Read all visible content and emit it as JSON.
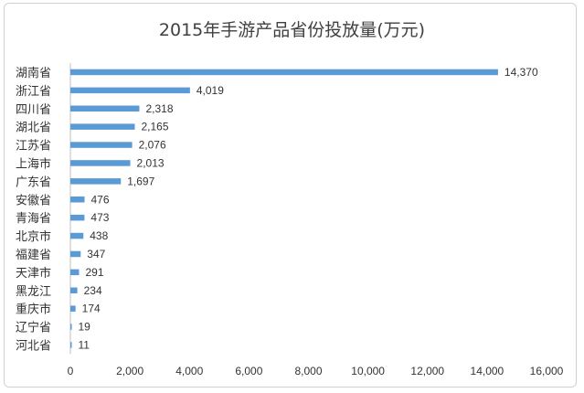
{
  "chart_data": {
    "type": "bar",
    "orientation": "horizontal",
    "title": "2015年手游产品省份投放量(万元)",
    "categories": [
      "湖南省",
      "浙江省",
      "四川省",
      "湖北省",
      "江苏省",
      "上海市",
      "广东省",
      "安徽省",
      "青海省",
      "北京市",
      "福建省",
      "天津市",
      "黑龙江",
      "重庆市",
      "辽宁省",
      "河北省"
    ],
    "values": [
      14370,
      4019,
      2318,
      2165,
      2076,
      2013,
      1697,
      476,
      473,
      438,
      347,
      291,
      234,
      174,
      19,
      11
    ],
    "value_labels": [
      "14,370",
      "4,019",
      "2,318",
      "2,165",
      "2,076",
      "2,013",
      "1,697",
      "476",
      "473",
      "438",
      "347",
      "291",
      "234",
      "174",
      "19",
      "11"
    ],
    "xlim": [
      0,
      16000
    ],
    "xticks": [
      "0",
      "2,000",
      "4,000",
      "6,000",
      "8,000",
      "10,000",
      "12,000",
      "14,000",
      "16,000"
    ],
    "bar_color": "#5b9bd5",
    "grid": false,
    "legend": "none"
  }
}
